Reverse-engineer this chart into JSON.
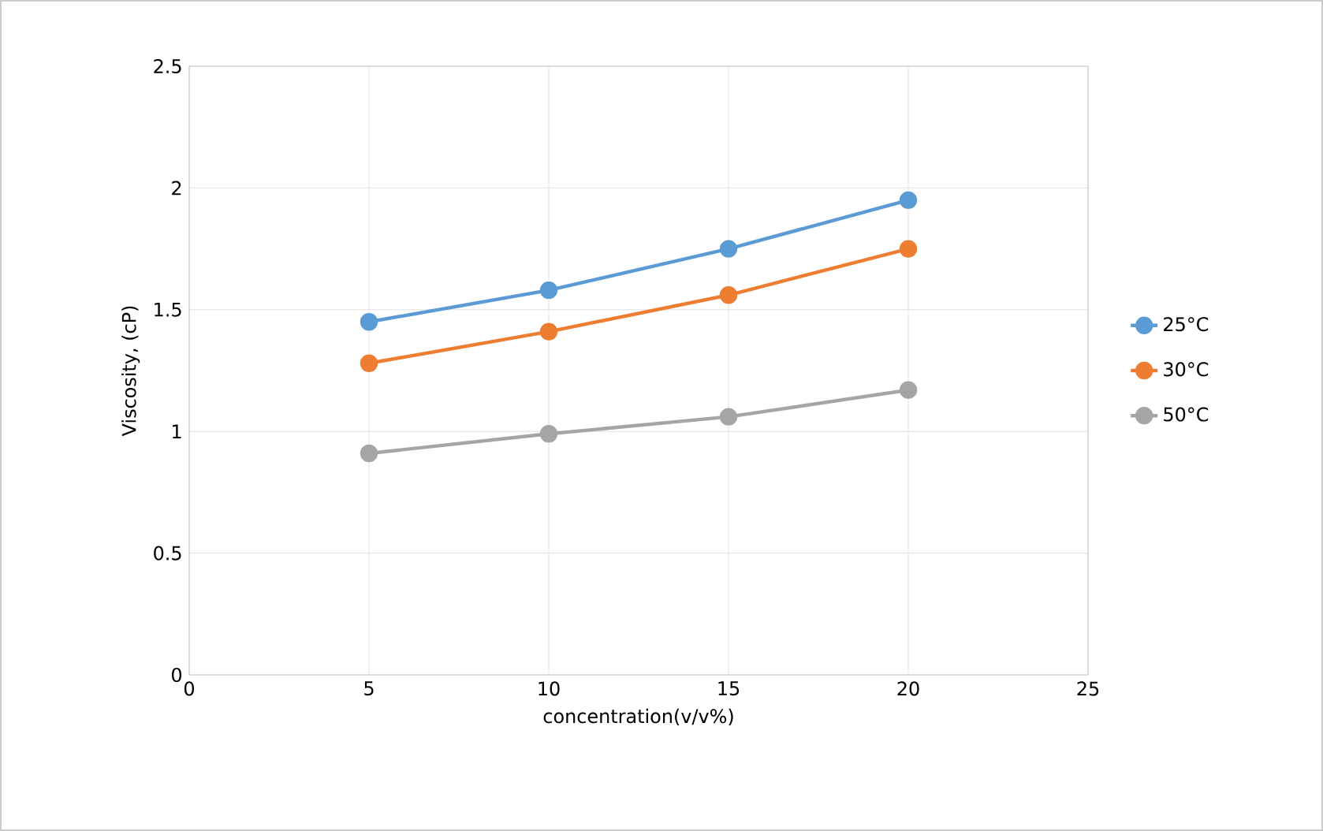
{
  "chart_data": {
    "type": "line",
    "xlabel": "concentration(v/v%)",
    "ylabel": "Viscosity, (cP)",
    "x": [
      5,
      10,
      15,
      20
    ],
    "series": [
      {
        "name": "25°C",
        "color": "#5b9bd5",
        "values": [
          1.45,
          1.58,
          1.75,
          1.95
        ]
      },
      {
        "name": "30°C",
        "color": "#ed7d31",
        "values": [
          1.28,
          1.41,
          1.56,
          1.75
        ]
      },
      {
        "name": "50°C",
        "color": "#a5a5a5",
        "values": [
          0.91,
          0.99,
          1.06,
          1.17
        ]
      }
    ],
    "xlim": [
      0,
      25
    ],
    "xticks": [
      0,
      5,
      10,
      15,
      20,
      25
    ],
    "ylim": [
      0,
      2.5
    ],
    "yticks": [
      0,
      0.5,
      1,
      1.5,
      2,
      2.5
    ],
    "grid": true,
    "legend": "right",
    "marker": "circle",
    "line_style": "solid"
  }
}
